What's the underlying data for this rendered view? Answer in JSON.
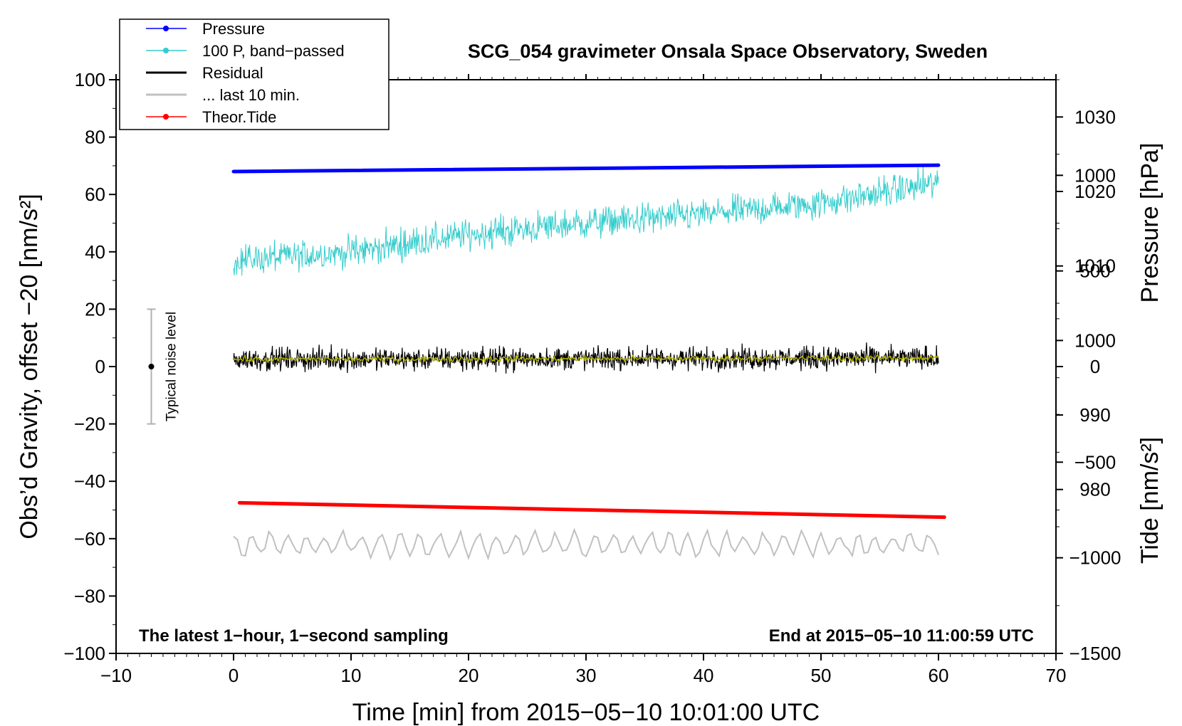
{
  "chart_data": {
    "type": "line",
    "title": "SCG_054 gravimeter Onsala Space Observatory, Sweden",
    "subtitle_left": "The latest 1−hour, 1−second sampling",
    "subtitle_right": "End at 2015−05−10 11:00:59 UTC",
    "xlabel": "Time [min] from 2015−05−10 10:01:00 UTC",
    "ylabel": "Obs’d Gravity, offset −20 [nm/s²]",
    "ylabel_pressure": "Pressure [hPa]",
    "ylabel_tide": "Tide [nm/s²]",
    "xlim": [
      -10,
      70
    ],
    "ylim": [
      -100,
      100
    ],
    "x_ticks": [
      "−10",
      "0",
      "10",
      "20",
      "30",
      "40",
      "50",
      "60",
      "70"
    ],
    "y_ticks": [
      "100",
      "80",
      "60",
      "40",
      "20",
      "0",
      "−20",
      "−40",
      "−60",
      "−80",
      "−100"
    ],
    "pressure_axis": {
      "range_hpa": [
        958,
        1035
      ],
      "ticks": [
        "1030",
        "1020",
        "1010",
        "1000",
        "990",
        "980"
      ]
    },
    "tide_axis": {
      "range": [
        -1500,
        1500
      ],
      "ticks": [
        "1000",
        "500",
        "0",
        "−500",
        "−1000",
        "−1500"
      ]
    },
    "noise_marker": {
      "label": "Typical noise level",
      "x": -7,
      "center": 0,
      "low": -20,
      "high": 20
    },
    "legend": {
      "position": "top-left",
      "entries": [
        {
          "label": "Pressure",
          "color": "#0000ff",
          "marker": "dot"
        },
        {
          "label": "100 P, band−passed",
          "color": "#33cccc",
          "marker": "dot"
        },
        {
          "label": "Residual",
          "color": "#000000",
          "marker": "none"
        },
        {
          "label": "... last 10 min.",
          "color": "#c0c0c0",
          "marker": "none"
        },
        {
          "label": "Theor.Tide",
          "color": "#ff0000",
          "marker": "dot"
        }
      ]
    },
    "series": [
      {
        "name": "Pressure",
        "color": "#0000ff",
        "axis": "left",
        "x": [
          0,
          60
        ],
        "values": [
          68,
          70.2
        ]
      },
      {
        "name": "100 P, band-passed",
        "color": "#33cccc",
        "axis": "left",
        "x": [
          0,
          10,
          20,
          30,
          40,
          50,
          60
        ],
        "values": [
          37,
          40,
          46,
          50,
          53,
          57,
          64
        ],
        "noise_amplitude": 4.5
      },
      {
        "name": "Residual",
        "color": "#000000",
        "axis": "left",
        "x": [
          0,
          60
        ],
        "values": [
          2.5,
          3
        ],
        "noise_amplitude": 3.2
      },
      {
        "name": "Residual smoothed",
        "color": "#b0b000",
        "axis": "left",
        "x": [
          0,
          60
        ],
        "values": [
          2.5,
          3
        ],
        "noise_amplitude": 0.8
      },
      {
        "name": "... last 10 min.",
        "color": "#c0c0c0",
        "axis": "left",
        "x": [
          0,
          60
        ],
        "values": [
          -62,
          -62
        ],
        "noise_amplitude": 3.5
      },
      {
        "name": "Theor.Tide",
        "color": "#ff0000",
        "axis": "left",
        "x": [
          0.5,
          60.5
        ],
        "values": [
          -47.5,
          -52.5
        ]
      }
    ]
  }
}
